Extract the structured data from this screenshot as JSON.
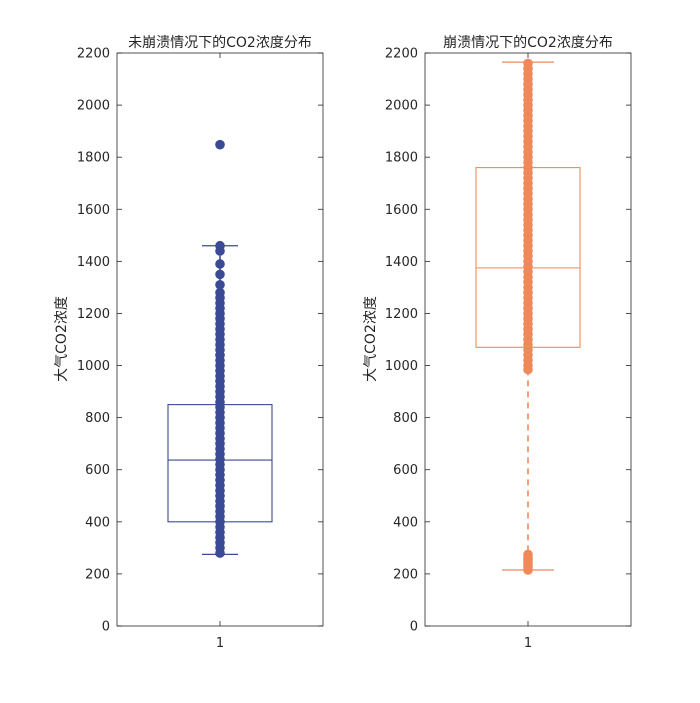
{
  "chart_data": [
    {
      "type": "boxplot",
      "title": "未崩溃情况下的CO2浓度分布",
      "ylabel": "大气CO2浓度",
      "xlabel": "",
      "ylim": [
        0,
        2200
      ],
      "yticks": [
        0,
        200,
        400,
        600,
        800,
        1000,
        1200,
        1400,
        1600,
        1800,
        2000,
        2200
      ],
      "categories": [
        "1"
      ],
      "color": "#3b4a94",
      "box": {
        "q1": 400,
        "median": 637,
        "q3": 850,
        "whisker_low": 275,
        "whisker_high": 1460
      },
      "outliers": [
        280,
        300,
        320,
        340,
        360,
        380,
        400,
        420,
        440,
        460,
        480,
        500,
        520,
        540,
        560,
        580,
        600,
        620,
        640,
        660,
        680,
        700,
        720,
        740,
        760,
        780,
        800,
        820,
        840,
        860,
        880,
        900,
        920,
        940,
        960,
        980,
        1000,
        1020,
        1040,
        1060,
        1080,
        1100,
        1120,
        1140,
        1160,
        1180,
        1200,
        1220,
        1240,
        1260,
        1280,
        1310,
        1350,
        1390,
        1440,
        1460,
        1848
      ]
    },
    {
      "type": "boxplot",
      "title": "崩溃情况下的CO2浓度分布",
      "ylabel": "大气CO2浓度",
      "xlabel": "",
      "ylim": [
        0,
        2200
      ],
      "yticks": [
        0,
        200,
        400,
        600,
        800,
        1000,
        1200,
        1400,
        1600,
        1800,
        2000,
        2200
      ],
      "categories": [
        "1"
      ],
      "color": "#f0895a",
      "box": {
        "q1": 1070,
        "median": 1375,
        "q3": 1760,
        "whisker_low": 215,
        "whisker_high": 2165
      },
      "outliers": [
        215,
        225,
        235,
        245,
        255,
        265,
        275,
        985,
        1000,
        1020,
        1040,
        1060,
        1080,
        1100,
        1120,
        1140,
        1160,
        1180,
        1200,
        1220,
        1240,
        1260,
        1280,
        1300,
        1320,
        1340,
        1360,
        1380,
        1400,
        1420,
        1440,
        1460,
        1480,
        1500,
        1520,
        1540,
        1560,
        1580,
        1600,
        1620,
        1640,
        1660,
        1680,
        1700,
        1720,
        1740,
        1760,
        1780,
        1800,
        1820,
        1840,
        1860,
        1880,
        1900,
        1920,
        1940,
        1960,
        1980,
        2000,
        2020,
        2040,
        2060,
        2080,
        2100,
        2120,
        2140,
        2160
      ]
    }
  ]
}
